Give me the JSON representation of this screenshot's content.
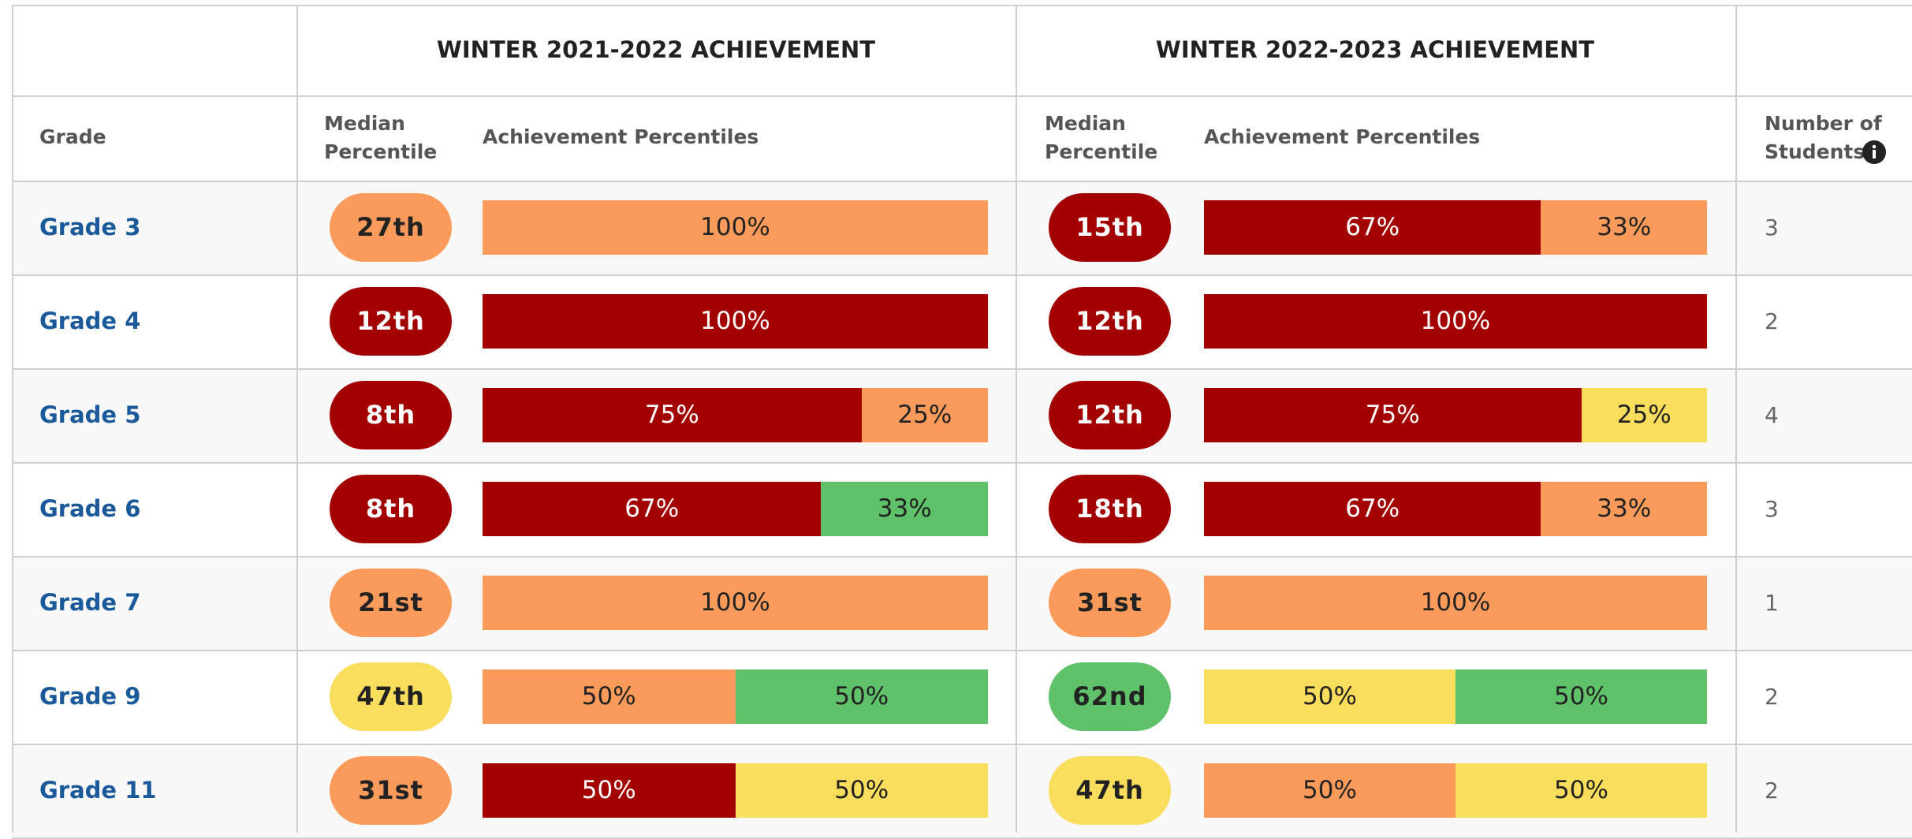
{
  "header": {
    "groups": [
      "WINTER 2021-2022 ACHIEVEMENT",
      "WINTER 2022-2023 ACHIEVEMENT"
    ],
    "grade": "Grade",
    "median": "Median Percentile",
    "achievement": "Achievement Percentiles",
    "students": "Number of Students"
  },
  "rows": [
    {
      "grade": "Grade 3",
      "periods": [
        {
          "median": "27th",
          "median_color": "#fb9b5b",
          "segments": [
            {
              "value": 100,
              "label": "100%",
              "color": "#fb9b5b"
            }
          ]
        },
        {
          "median": "15th",
          "median_color": "#a30000",
          "segments": [
            {
              "value": 67,
              "label": "67%",
              "color": "#a30000"
            },
            {
              "value": 33,
              "label": "33%",
              "color": "#fb9b5b"
            }
          ]
        }
      ],
      "students": 3
    },
    {
      "grade": "Grade 4",
      "periods": [
        {
          "median": "12th",
          "median_color": "#a30000",
          "segments": [
            {
              "value": 100,
              "label": "100%",
              "color": "#a30000"
            }
          ]
        },
        {
          "median": "12th",
          "median_color": "#a30000",
          "segments": [
            {
              "value": 100,
              "label": "100%",
              "color": "#a30000"
            }
          ]
        }
      ],
      "students": 2
    },
    {
      "grade": "Grade 5",
      "periods": [
        {
          "median": "8th",
          "median_color": "#a30000",
          "segments": [
            {
              "value": 75,
              "label": "75%",
              "color": "#a30000"
            },
            {
              "value": 25,
              "label": "25%",
              "color": "#fb9b5b"
            }
          ]
        },
        {
          "median": "12th",
          "median_color": "#a30000",
          "segments": [
            {
              "value": 75,
              "label": "75%",
              "color": "#a30000"
            },
            {
              "value": 25,
              "label": "25%",
              "color": "#f9dd5c"
            }
          ]
        }
      ],
      "students": 4
    },
    {
      "grade": "Grade 6",
      "periods": [
        {
          "median": "8th",
          "median_color": "#a30000",
          "segments": [
            {
              "value": 67,
              "label": "67%",
              "color": "#a30000"
            },
            {
              "value": 33,
              "label": "33%",
              "color": "#5fc16a"
            }
          ]
        },
        {
          "median": "18th",
          "median_color": "#a30000",
          "segments": [
            {
              "value": 67,
              "label": "67%",
              "color": "#a30000"
            },
            {
              "value": 33,
              "label": "33%",
              "color": "#fb9b5b"
            }
          ]
        }
      ],
      "students": 3
    },
    {
      "grade": "Grade 7",
      "periods": [
        {
          "median": "21st",
          "median_color": "#fb9b5b",
          "segments": [
            {
              "value": 100,
              "label": "100%",
              "color": "#fb9b5b"
            }
          ]
        },
        {
          "median": "31st",
          "median_color": "#fb9b5b",
          "segments": [
            {
              "value": 100,
              "label": "100%",
              "color": "#fb9b5b"
            }
          ]
        }
      ],
      "students": 1
    },
    {
      "grade": "Grade 9",
      "periods": [
        {
          "median": "47th",
          "median_color": "#f9dd5c",
          "segments": [
            {
              "value": 50,
              "label": "50%",
              "color": "#fb9b5b"
            },
            {
              "value": 50,
              "label": "50%",
              "color": "#5fc16a"
            }
          ]
        },
        {
          "median": "62nd",
          "median_color": "#5fc16a",
          "segments": [
            {
              "value": 50,
              "label": "50%",
              "color": "#f9dd5c"
            },
            {
              "value": 50,
              "label": "50%",
              "color": "#5fc16a"
            }
          ]
        }
      ],
      "students": 2
    },
    {
      "grade": "Grade 11",
      "periods": [
        {
          "median": "31st",
          "median_color": "#fb9b5b",
          "segments": [
            {
              "value": 50,
              "label": "50%",
              "color": "#a30000"
            },
            {
              "value": 50,
              "label": "50%",
              "color": "#f9dd5c"
            }
          ]
        },
        {
          "median": "47th",
          "median_color": "#f9dd5c",
          "segments": [
            {
              "value": 50,
              "label": "50%",
              "color": "#fb9b5b"
            },
            {
              "value": 50,
              "label": "50%",
              "color": "#f9dd5c"
            }
          ]
        }
      ],
      "students": 2
    }
  ]
}
